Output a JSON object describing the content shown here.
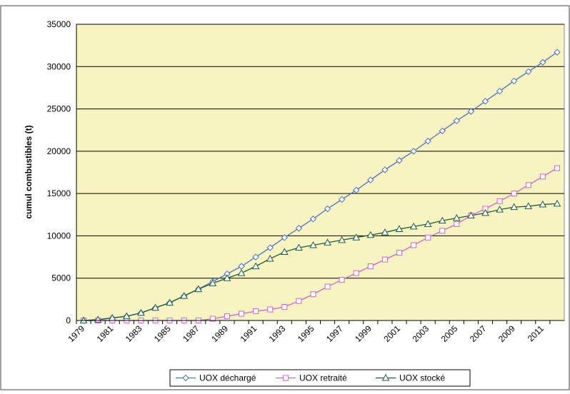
{
  "chart_data": {
    "type": "line",
    "y_label": "cumul combustibles (t)",
    "categories": [
      "1979",
      null,
      "1981",
      null,
      "1983",
      null,
      "1985",
      null,
      "1987",
      null,
      "1989",
      null,
      "1991",
      null,
      "1993",
      null,
      "1995",
      null,
      "1997",
      null,
      "1999",
      null,
      "2001",
      null,
      "2003",
      null,
      "2005",
      null,
      "2007",
      null,
      "2009",
      null,
      "2011",
      null
    ],
    "series": [
      {
        "name": "UOX déchargé",
        "color": "#4a6fc0",
        "marker": "diamond",
        "values": [
          0,
          100,
          300,
          500,
          900,
          1500,
          2100,
          2900,
          3700,
          4600,
          5500,
          6400,
          7500,
          8600,
          9800,
          10900,
          12000,
          13200,
          14300,
          15400,
          16600,
          17800,
          18900,
          20000,
          21200,
          22400,
          23600,
          24700,
          25900,
          27100,
          28300,
          29400,
          30500,
          31700
        ]
      },
      {
        "name": "UOX retraité",
        "color": "#cc66cc",
        "marker": "square",
        "values": [
          0,
          0,
          0,
          0,
          0,
          0,
          0,
          0,
          0,
          200,
          500,
          800,
          1100,
          1300,
          1600,
          2300,
          3100,
          4000,
          4800,
          5600,
          6400,
          7200,
          8000,
          8900,
          9800,
          10600,
          11400,
          12400,
          13200,
          14100,
          15000,
          16000,
          17000,
          18000
        ]
      },
      {
        "name": "UOX stocké",
        "color": "#1f5c3a",
        "marker": "triangle",
        "values": [
          0,
          100,
          300,
          500,
          900,
          1500,
          2100,
          2900,
          3700,
          4400,
          5000,
          5600,
          6400,
          7300,
          8100,
          8600,
          8900,
          9200,
          9500,
          9800,
          10100,
          10400,
          10800,
          11100,
          11400,
          11800,
          12100,
          12400,
          12700,
          13100,
          13400,
          13500,
          13700,
          13800
        ]
      }
    ],
    "ylim": [
      0,
      35000
    ],
    "yticks": [
      0,
      5000,
      10000,
      15000,
      20000,
      25000,
      30000,
      35000
    ],
    "grid": true,
    "legend": "bottom",
    "plot_background": "#f8f4c2"
  }
}
